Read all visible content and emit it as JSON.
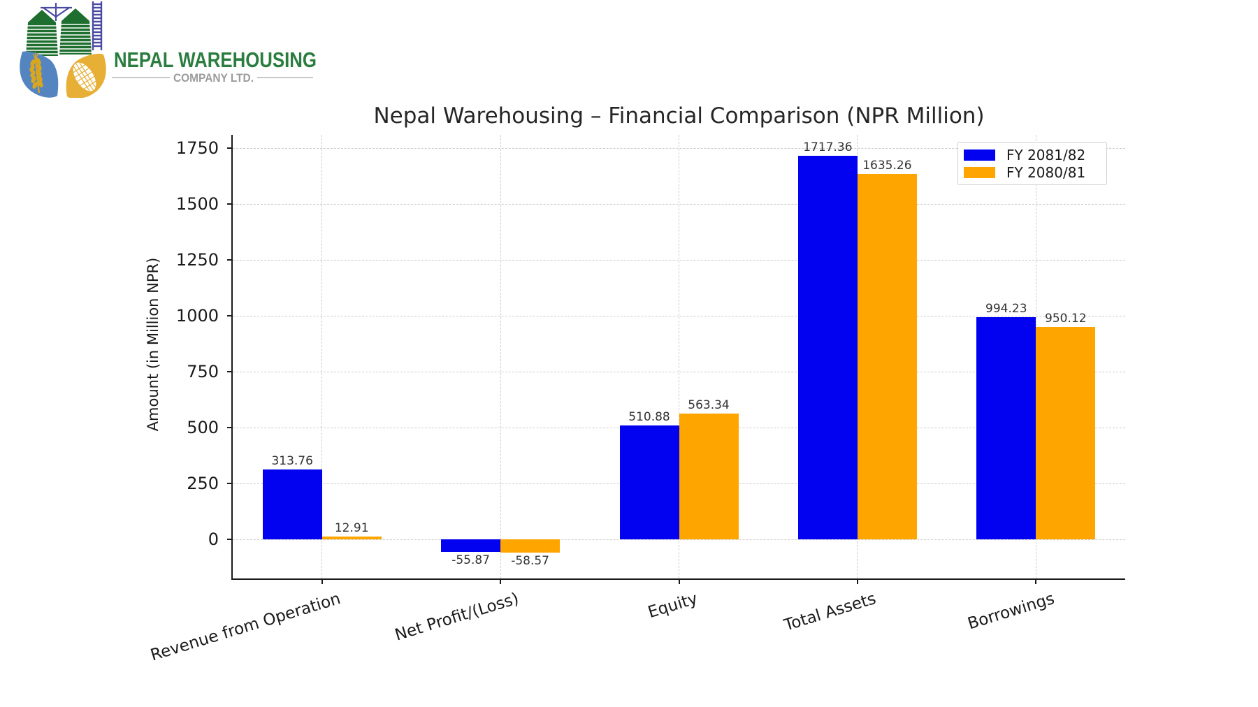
{
  "logo": {
    "company_name": "NEPAL WAREHOUSING",
    "company_subtitle": "COMPANY LTD.",
    "colors": {
      "silo_green": "#1e6f2f",
      "name_green": "#2a7d3f",
      "subtitle_gray": "#9b9b9b",
      "ladder_purple": "#4a4aa0",
      "leaf_blue": "#5585c0",
      "leaf_yellow": "#e7af35",
      "wheat_gold": "#d9a61f"
    }
  },
  "chart_data": {
    "type": "bar",
    "title": "Nepal Warehousing – Financial Comparison (NPR Million)",
    "ylabel": "Amount (in Million NPR)",
    "xlabel": "",
    "categories": [
      "Revenue from Operation",
      "Net Profit/(Loss)",
      "Equity",
      "Total Assets",
      "Borrowings"
    ],
    "series": [
      {
        "name": "FY 2081/82",
        "color": "#0202f0",
        "values": [
          313.76,
          -55.87,
          510.88,
          1717.36,
          994.23
        ]
      },
      {
        "name": "FY 2080/81",
        "color": "#ffa500",
        "values": [
          12.91,
          -58.57,
          563.34,
          1635.26,
          950.12
        ]
      }
    ],
    "yticks": [
      0,
      250,
      500,
      750,
      1000,
      1250,
      1500,
      1750
    ],
    "ylim": [
      -175,
      1810
    ],
    "grid": true,
    "grid_style": "dashed",
    "legend_position": "upper right"
  }
}
